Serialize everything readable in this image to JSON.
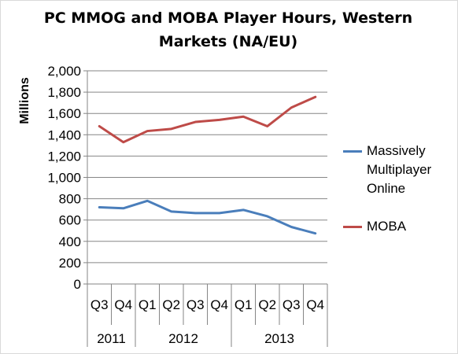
{
  "chart_data": {
    "type": "line",
    "title_lines": [
      "PC MMOG and MOBA Player Hours, Western",
      "Markets (NA/EU)"
    ],
    "ylabel": "Millions",
    "ylim": [
      0,
      2000
    ],
    "y_ticks": [
      0,
      200,
      400,
      600,
      800,
      1000,
      1200,
      1400,
      1600,
      1800,
      2000
    ],
    "y_tick_labels": [
      "0",
      "200",
      "400",
      "600",
      "800",
      "1,000",
      "1,200",
      "1,400",
      "1,600",
      "1,800",
      "2,000"
    ],
    "quarters": [
      "Q3",
      "Q4",
      "Q1",
      "Q2",
      "Q3",
      "Q4",
      "Q1",
      "Q2",
      "Q3",
      "Q4"
    ],
    "years": [
      {
        "label": "2011",
        "span": 2
      },
      {
        "label": "2012",
        "span": 4
      },
      {
        "label": "2013",
        "span": 4
      }
    ],
    "series": [
      {
        "name": "Massively Multiplayer Online",
        "legend_lines": [
          "Massively",
          "Multiplayer",
          "Online"
        ],
        "color": "#4a7ebb",
        "values": [
          720,
          710,
          780,
          680,
          665,
          665,
          695,
          635,
          535,
          475
        ]
      },
      {
        "name": "MOBA",
        "legend_lines": [
          "MOBA"
        ],
        "color": "#be4b48",
        "values": [
          1480,
          1330,
          1435,
          1455,
          1520,
          1540,
          1570,
          1480,
          1655,
          1755
        ]
      }
    ],
    "grid": true,
    "legend_position": "right"
  }
}
